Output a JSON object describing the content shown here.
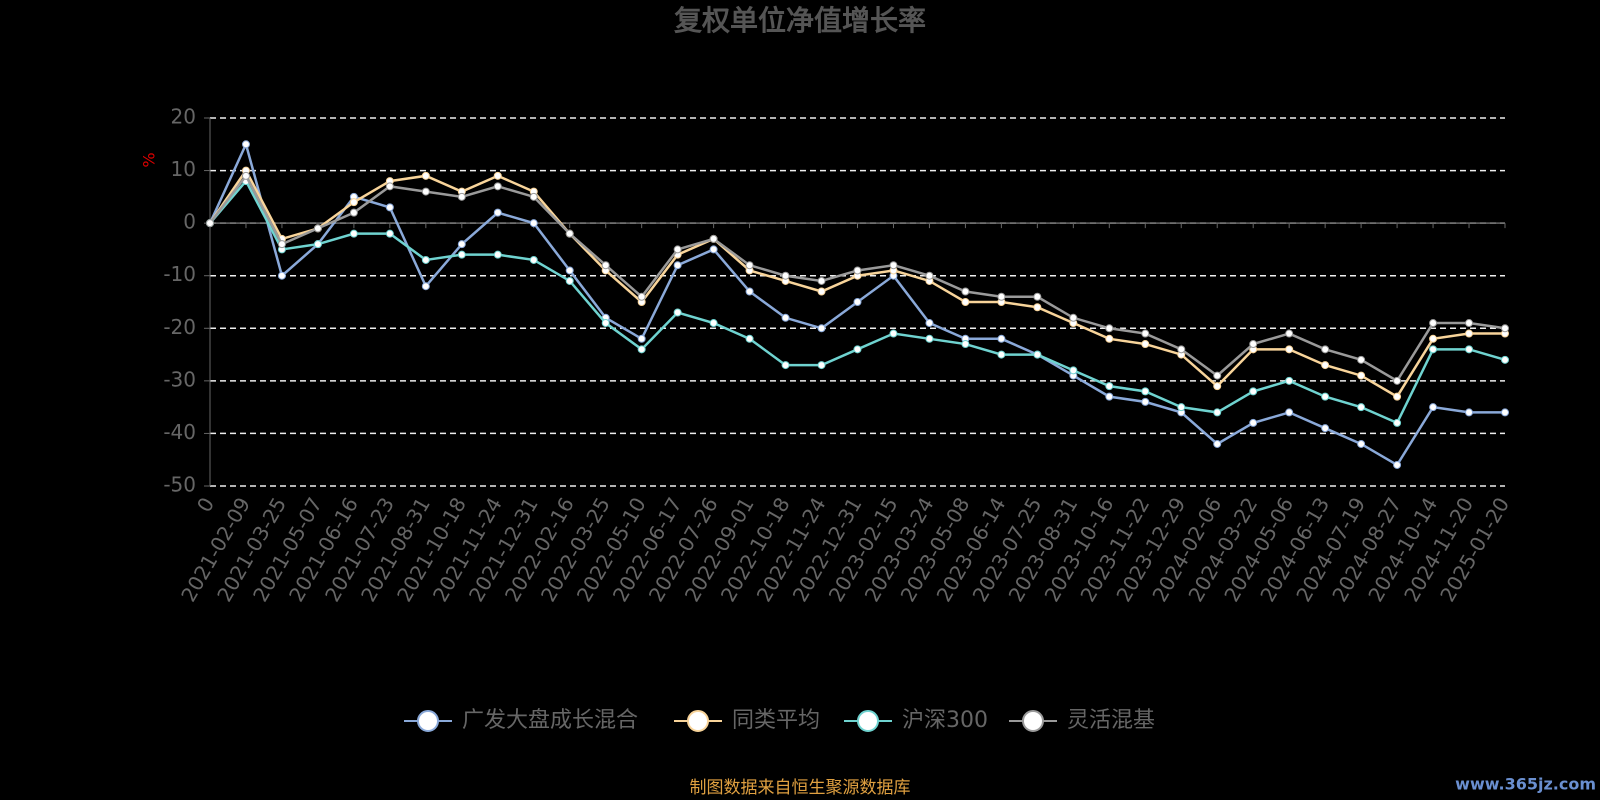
{
  "chart_data": {
    "type": "line",
    "title": "复权单位净值增长率",
    "y_label": "%",
    "source": "制图数据来自恒生聚源数据库",
    "watermark": "www.365jz.com",
    "categories": [
      "0",
      "2021-02-09",
      "2021-03-25",
      "2021-05-07",
      "2021-06-16",
      "2021-07-23",
      "2021-08-31",
      "2021-10-18",
      "2021-11-24",
      "2021-12-31",
      "2022-02-16",
      "2022-03-25",
      "2022-05-10",
      "2022-06-17",
      "2022-07-26",
      "2022-09-01",
      "2022-10-18",
      "2022-11-24",
      "2022-12-31",
      "2023-02-15",
      "2023-03-24",
      "2023-05-08",
      "2023-06-14",
      "2023-07-25",
      "2023-08-31",
      "2023-10-16",
      "2023-11-22",
      "2023-12-29",
      "2024-02-06",
      "2024-03-22",
      "2024-05-06",
      "2024-06-13",
      "2024-07-19",
      "2024-08-27",
      "2024-10-14",
      "2024-11-20",
      "2025-01-20"
    ],
    "series": [
      {
        "name": "广发大盘成长混合",
        "color": "#8aa9d9",
        "values": [
          0,
          15,
          -10,
          -4,
          5,
          3,
          -12,
          -4,
          2,
          0,
          -9,
          -18,
          -22,
          -8,
          -5,
          -13,
          -18,
          -20,
          -15,
          -10,
          -19,
          -22,
          -22,
          -25,
          -29,
          -33,
          -34,
          -36,
          -42,
          -38,
          -36,
          -39,
          -42,
          -46,
          -35,
          -36,
          -36
        ]
      },
      {
        "name": "同类平均",
        "color": "#f8d49a",
        "values": [
          0,
          10,
          -3,
          -1,
          4,
          8,
          9,
          6,
          9,
          6,
          -2,
          -9,
          -15,
          -6,
          -3,
          -9,
          -11,
          -13,
          -10,
          -9,
          -11,
          -15,
          -15,
          -16,
          -19,
          -22,
          -23,
          -25,
          -31,
          -24,
          -24,
          -27,
          -29,
          -33,
          -22,
          -21,
          -21
        ]
      },
      {
        "name": "沪深300",
        "color": "#6fd3d0",
        "values": [
          0,
          8,
          -5,
          -4,
          -2,
          -2,
          -7,
          -6,
          -6,
          -7,
          -11,
          -19,
          -24,
          -17,
          -19,
          -22,
          -27,
          -27,
          -24,
          -21,
          -22,
          -23,
          -25,
          -25,
          -28,
          -31,
          -32,
          -35,
          -36,
          -32,
          -30,
          -33,
          -35,
          -38,
          -24,
          -24,
          -26
        ]
      },
      {
        "name": "灵活混基",
        "color": "#9a9a9a",
        "values": [
          0,
          9,
          -4,
          -1,
          2,
          7,
          6,
          5,
          7,
          5,
          -2,
          -8,
          -14,
          -5,
          -3,
          -8,
          -10,
          -11,
          -9,
          -8,
          -10,
          -13,
          -14,
          -14,
          -18,
          -20,
          -21,
          -24,
          -29,
          -23,
          -21,
          -24,
          -26,
          -30,
          -19,
          -19,
          -20
        ]
      }
    ],
    "ylim": [
      -50,
      20
    ],
    "yticks": [
      -50,
      -40,
      -30,
      -20,
      -10,
      0,
      10,
      20
    ],
    "grid": true
  }
}
